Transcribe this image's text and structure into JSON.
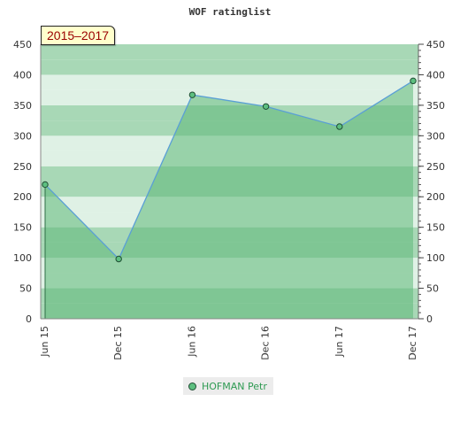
{
  "period_label": "2015–2017",
  "chart_data": {
    "type": "area",
    "title": "WOF ratinglist",
    "categories": [
      "Jun 15",
      "Dec 15",
      "Jun 16",
      "Dec 16",
      "Jun 17",
      "Dec 17"
    ],
    "series": [
      {
        "name": "HOFMAN Petr",
        "values": [
          220,
          98,
          367,
          348,
          315,
          390
        ]
      }
    ],
    "ylim": [
      0,
      450
    ],
    "yticks": [
      0,
      50,
      100,
      150,
      200,
      250,
      300,
      350,
      400,
      450
    ],
    "right_axis": true,
    "legend": "bottom-center",
    "colors": {
      "fill": "#5cb878",
      "line": "#5a9fd6",
      "marker": "#5dbf80",
      "band_dark": "#a8d8b6",
      "band_light": "#dff1e5"
    }
  }
}
